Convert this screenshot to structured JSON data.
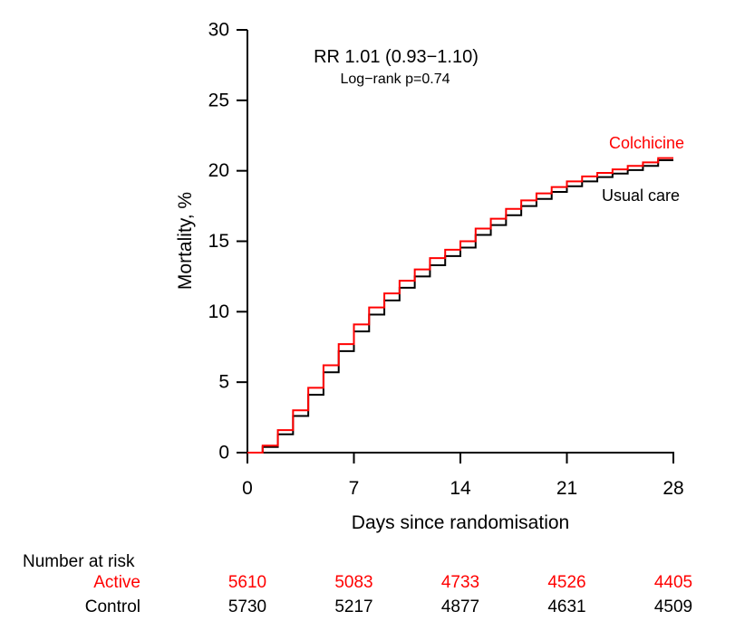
{
  "figure": {
    "background": "#ffffff",
    "accent_red": "#ff0000",
    "text_black": "#000000"
  },
  "annotation": {
    "line1": "RR 1.01 (0.93−1.10)",
    "line2": "Log−rank p=0.74"
  },
  "chart_data": {
    "type": "line",
    "subtype": "kaplan-meier-step",
    "title": "",
    "xlabel": "Days since randomisation",
    "ylabel": "Mortality, %",
    "xlim": [
      0,
      28
    ],
    "ylim": [
      0,
      30
    ],
    "xticks": [
      0,
      7,
      14,
      21,
      28
    ],
    "yticks": [
      0,
      5,
      10,
      15,
      20,
      25,
      30
    ],
    "grid": false,
    "legend_position": "inline-right-of-curves",
    "x": [
      0,
      1,
      2,
      3,
      4,
      5,
      6,
      7,
      8,
      9,
      10,
      11,
      12,
      13,
      14,
      15,
      16,
      17,
      18,
      19,
      20,
      21,
      22,
      23,
      24,
      25,
      26,
      27,
      28
    ],
    "series": [
      {
        "name": "Colchicine",
        "color": "#ff0000",
        "values": [
          0,
          0.5,
          1.6,
          3.0,
          4.6,
          6.2,
          7.7,
          9.1,
          10.3,
          11.3,
          12.2,
          13.0,
          13.8,
          14.4,
          15.0,
          15.9,
          16.6,
          17.3,
          17.9,
          18.4,
          18.85,
          19.25,
          19.6,
          19.85,
          20.1,
          20.35,
          20.6,
          20.9,
          20.9
        ]
      },
      {
        "name": "Usual care",
        "color": "#000000",
        "values": [
          0,
          0.4,
          1.3,
          2.6,
          4.1,
          5.7,
          7.2,
          8.6,
          9.8,
          10.8,
          11.7,
          12.5,
          13.3,
          13.95,
          14.55,
          15.45,
          16.15,
          16.85,
          17.5,
          18.0,
          18.5,
          18.9,
          19.25,
          19.55,
          19.8,
          20.05,
          20.35,
          20.75,
          20.75
        ]
      }
    ],
    "annotations": [
      "RR 1.01 (0.93−1.10)",
      "Log−rank p=0.74"
    ]
  },
  "risk_table": {
    "header": "Number at risk",
    "days": [
      0,
      7,
      14,
      21,
      28
    ],
    "rows": [
      {
        "label": "Active",
        "color": "#ff0000",
        "values": [
          "5610",
          "5083",
          "4733",
          "4526",
          "4405"
        ]
      },
      {
        "label": "Control",
        "color": "#000000",
        "values": [
          "5730",
          "5217",
          "4877",
          "4631",
          "4509"
        ]
      }
    ]
  }
}
